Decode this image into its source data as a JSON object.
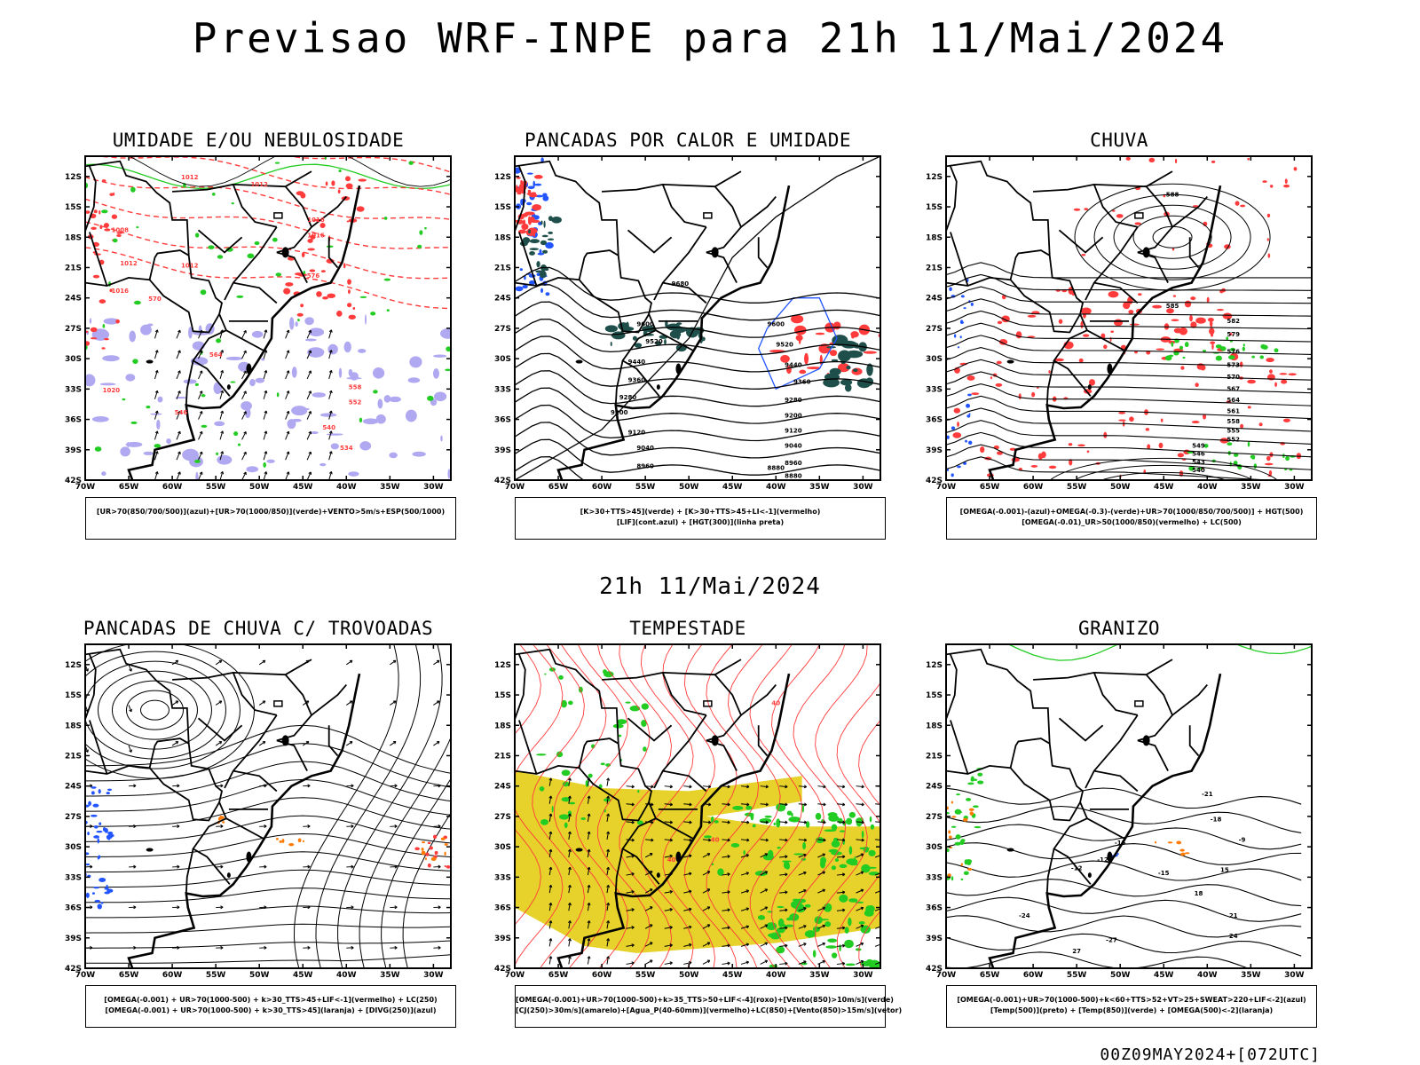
{
  "header": {
    "title": "Previsao WRF-INPE  para 21h 11/Mai/2024",
    "mid_title": "21h 11/Mai/2024",
    "footer_stamp": "00Z09MAY2024+[072UTC]"
  },
  "axes": {
    "lat_ticks": [
      "12S",
      "15S",
      "18S",
      "21S",
      "24S",
      "27S",
      "30S",
      "33S",
      "36S",
      "39S",
      "42S"
    ],
    "lon_ticks": [
      "70W",
      "65W",
      "60W",
      "55W",
      "50W",
      "45W",
      "40W",
      "35W",
      "30W"
    ]
  },
  "colors": {
    "red": "#ff3b3b",
    "green": "#22cc22",
    "blue": "#2255ff",
    "lavender": "#b0a8f0",
    "teal": "#1f4f4a",
    "yellow": "#e6d22a",
    "orange": "#ff7a00",
    "black": "#000000"
  },
  "panels": [
    {
      "id": "umidade",
      "title": "UMIDADE E/OU NEBULOSIDADE",
      "legend": [
        "[UR>70(850/700/500)](azul)+[UR>70(1000/850)](verde)+VENTO>5m/s+ESP(500/1000)"
      ],
      "contour_labels": [
        "1012",
        "1012",
        "1008",
        "1016",
        "1012",
        "1012",
        "1016",
        "1016",
        "1020",
        "576",
        "570",
        "564",
        "558",
        "552",
        "546",
        "540",
        "534"
      ]
    },
    {
      "id": "pancadas_calor",
      "title": "PANCADAS POR CALOR E UMIDADE",
      "legend": [
        "[K>30+TTS>45](verde) + [K>30+TTS>45+LI<-1](vermelho)",
        "[LIF](cont.azul) + [HGT(300)](linha preta)"
      ],
      "contour_labels": [
        "9680",
        "9600",
        "9520",
        "9440",
        "9360",
        "9280",
        "9200",
        "9120",
        "9040",
        "8960",
        "8880"
      ]
    },
    {
      "id": "chuva",
      "title": "CHUVA",
      "legend": [
        "[OMEGA(-0.001)-(azul)+OMEGA(-0.3)-(verde)+UR>70(1000/850/700/500)] + HGT(500)",
        "[OMEGA(-0.01)_UR>50(1000/850)(vermelho) + LC(500)"
      ],
      "contour_labels": [
        "588",
        "585",
        "582",
        "579",
        "576",
        "573",
        "570",
        "567",
        "564",
        "561",
        "558",
        "555",
        "552",
        "549",
        "546",
        "543",
        "540"
      ]
    },
    {
      "id": "trovoadas",
      "title": "PANCADAS DE CHUVA C/ TROVOADAS",
      "legend": [
        "[OMEGA(-0.001) + UR>70(1000-500) + k>30_TTS>45+LIF<-1](vermelho) + LC(250)",
        "[OMEGA(-0.001) + UR>70(1000-500) + k>30_TTS>45](laranja) + [DIVG(250)](azul)"
      ],
      "contour_labels": []
    },
    {
      "id": "tempestade",
      "title": "TEMPESTADE",
      "legend": [
        "[OMEGA(-0.001)+UR>70(1000-500)+k>35_TTS>50+LIF<-4](roxo)+[Vento(850)>10m/s](verde)",
        "[CJ(250)>30m/s](amarelo)+[Agua_P(40-60mm)](vermelho)+LC(850)+[Vento(850)>15m/s](vetor)"
      ],
      "contour_labels": [
        "40",
        "40",
        "40"
      ]
    },
    {
      "id": "granizo",
      "title": "GRANIZO",
      "legend": [
        "[OMEGA(-0.001)+UR>70(1000-500)+k<60+TTS>52+VT>25+SWEAT>220+LIF<-2](azul)",
        "[Temp(500)](preto) + [Temp(850)](verde) + [OMEGA(500)<-2](laranja)"
      ],
      "contour_labels": [
        "-21",
        "-18",
        "-15",
        "-12",
        "-9",
        "-24",
        "-27",
        "-15",
        "-12",
        "15",
        "18",
        "21",
        "24",
        "27"
      ]
    }
  ],
  "chart_data": [
    {
      "type": "map",
      "title": "UMIDADE E/OU NEBULOSIDADE",
      "xlabel": "",
      "ylabel": "",
      "x_ticks": [
        "70W",
        "65W",
        "60W",
        "55W",
        "50W",
        "45W",
        "40W",
        "35W",
        "30W"
      ],
      "y_ticks": [
        "12S",
        "15S",
        "18S",
        "21S",
        "24S",
        "27S",
        "30S",
        "33S",
        "36S",
        "39S",
        "42S"
      ],
      "xlim": [
        -70,
        -28
      ],
      "ylim": [
        -42,
        -10
      ],
      "series": [
        {
          "name": "pressao (hPa)",
          "levels": [
            1008,
            1012,
            1016,
            1020
          ]
        },
        {
          "name": "espessura 500/1000",
          "levels": [
            534,
            540,
            546,
            552,
            558,
            564,
            570,
            576
          ]
        }
      ]
    },
    {
      "type": "map",
      "title": "PANCADAS POR CALOR E UMIDADE",
      "xlim": [
        -70,
        -28
      ],
      "ylim": [
        -42,
        -10
      ],
      "series": [
        {
          "name": "HGT(300)",
          "levels": [
            8880,
            8960,
            9040,
            9120,
            9200,
            9280,
            9360,
            9440,
            9520,
            9600,
            9680
          ]
        }
      ]
    },
    {
      "type": "map",
      "title": "CHUVA",
      "xlim": [
        -70,
        -28
      ],
      "ylim": [
        -42,
        -10
      ],
      "series": [
        {
          "name": "HGT(500)",
          "levels": [
            540,
            543,
            546,
            549,
            552,
            555,
            558,
            561,
            564,
            567,
            570,
            573,
            576,
            579,
            582,
            585,
            588
          ]
        }
      ]
    },
    {
      "type": "map",
      "title": "PANCADAS DE CHUVA C/ TROVOADAS",
      "xlim": [
        -70,
        -28
      ],
      "ylim": [
        -42,
        -10
      ],
      "series": [
        {
          "name": "LC(250)",
          "levels": []
        }
      ]
    },
    {
      "type": "map",
      "title": "TEMPESTADE",
      "xlim": [
        -70,
        -28
      ],
      "ylim": [
        -42,
        -10
      ],
      "series": [
        {
          "name": "LC(850)",
          "levels": []
        },
        {
          "name": "Agua_P",
          "levels": [
            40
          ]
        }
      ]
    },
    {
      "type": "map",
      "title": "GRANIZO",
      "xlim": [
        -70,
        -28
      ],
      "ylim": [
        -42,
        -10
      ],
      "series": [
        {
          "name": "Temp(500)",
          "levels": [
            -27,
            -24,
            -21,
            -18,
            -15,
            -12,
            -9
          ]
        },
        {
          "name": "Temp(850)",
          "levels": [
            12,
            15,
            18,
            21,
            24,
            27
          ]
        }
      ]
    }
  ]
}
